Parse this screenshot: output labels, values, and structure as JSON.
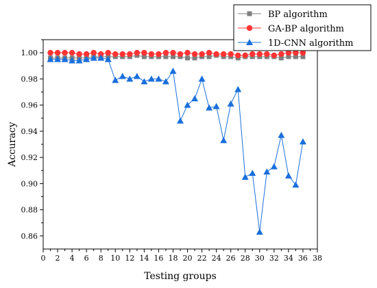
{
  "chart_data": {
    "type": "line",
    "title": "",
    "xlabel": "Testing groups",
    "ylabel": "Accuracy",
    "xlim": [
      0,
      38
    ],
    "ylim": [
      0.85,
      1.01
    ],
    "x_ticks": [
      0,
      2,
      4,
      6,
      8,
      10,
      12,
      14,
      16,
      18,
      20,
      22,
      24,
      26,
      28,
      30,
      32,
      34,
      36,
      38
    ],
    "x_tick_labels": [
      "0",
      "2",
      "4",
      "6",
      "8",
      "10",
      "12",
      "14",
      "16",
      "18",
      "20",
      "22",
      "24",
      "26",
      "28",
      "30",
      "32",
      "34",
      "36",
      "38"
    ],
    "y_ticks": [
      0.86,
      0.88,
      0.9,
      0.92,
      0.94,
      0.96,
      0.98,
      1.0
    ],
    "y_tick_labels": [
      "0.86",
      "0.88",
      "0.90",
      "0.92",
      "0.94",
      "0.96",
      "0.98",
      "1.00"
    ],
    "legend_position": "top-right",
    "x": [
      1,
      2,
      3,
      4,
      5,
      6,
      7,
      8,
      9,
      10,
      11,
      12,
      13,
      14,
      15,
      16,
      17,
      18,
      19,
      20,
      21,
      22,
      23,
      24,
      25,
      26,
      27,
      28,
      29,
      30,
      31,
      32,
      33,
      34,
      35,
      36
    ],
    "series": [
      {
        "name": "BP algorithm",
        "color": "#7f7f7f",
        "marker": "square",
        "values": [
          0.996,
          0.996,
          0.996,
          0.996,
          0.996,
          0.996,
          0.997,
          0.997,
          0.997,
          0.997,
          0.997,
          0.997,
          0.998,
          0.997,
          0.997,
          0.997,
          0.997,
          0.997,
          0.997,
          0.996,
          0.996,
          0.997,
          0.997,
          0.998,
          0.997,
          0.997,
          0.996,
          0.997,
          0.997,
          0.997,
          0.997,
          0.997,
          0.996,
          0.997,
          0.997,
          0.997
        ]
      },
      {
        "name": "GA-BP algorithm",
        "color": "#ff3333",
        "marker": "circle",
        "values": [
          1.0,
          1.0,
          1.0,
          1.0,
          0.999,
          0.999,
          1.0,
          0.999,
          1.0,
          0.999,
          0.999,
          0.999,
          1.0,
          1.0,
          0.999,
          0.999,
          1.0,
          1.0,
          0.999,
          1.0,
          0.999,
          0.999,
          1.0,
          0.999,
          0.999,
          0.999,
          0.998,
          0.998,
          0.999,
          0.999,
          0.999,
          0.998,
          0.999,
          1.0,
          1.0,
          1.0
        ]
      },
      {
        "name": "1D-CNN algorithm",
        "color": "#1a6fdc",
        "marker": "triangle",
        "values": [
          0.995,
          0.995,
          0.995,
          0.994,
          0.994,
          0.995,
          0.996,
          0.996,
          0.995,
          0.979,
          0.982,
          0.98,
          0.982,
          0.978,
          0.98,
          0.98,
          0.978,
          0.986,
          0.948,
          0.96,
          0.965,
          0.98,
          0.958,
          0.959,
          0.933,
          0.961,
          0.972,
          0.905,
          0.908,
          0.863,
          0.909,
          0.913,
          0.937,
          0.906,
          0.899,
          0.932
        ]
      }
    ]
  }
}
